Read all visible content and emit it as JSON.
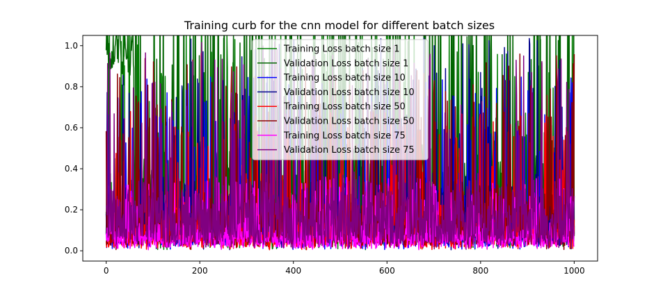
{
  "chart_data": {
    "type": "line",
    "title": "Training curb for the cnn model for different batch sizes",
    "xlabel": "",
    "ylabel": "",
    "xlim": [
      -50,
      1050
    ],
    "ylim": [
      -0.05,
      1.05
    ],
    "x_ticks": [
      0,
      200,
      400,
      600,
      800,
      1000
    ],
    "x_tick_labels": [
      "0",
      "200",
      "400",
      "600",
      "800",
      "1000"
    ],
    "y_ticks": [
      0.0,
      0.2,
      0.4,
      0.6,
      0.8,
      1.0
    ],
    "y_tick_labels": [
      "0.0",
      "0.2",
      "0.4",
      "0.6",
      "0.8",
      "1.0"
    ],
    "grid": false,
    "legend_position": "top-center",
    "x_range": [
      0,
      1000
    ],
    "series": [
      {
        "name": "Training Loss batch size 1",
        "color": "#008000",
        "mean": 0.25,
        "spread": 0.35
      },
      {
        "name": "Validation Loss batch size 1",
        "color": "#006400",
        "mean": 0.35,
        "spread": 0.45
      },
      {
        "name": "Training Loss batch size 10",
        "color": "#0000ff",
        "mean": 0.15,
        "spread": 0.25
      },
      {
        "name": "Validation Loss batch size 10",
        "color": "#00008b",
        "mean": 0.2,
        "spread": 0.3
      },
      {
        "name": "Training Loss batch size 50",
        "color": "#ff0000",
        "mean": 0.12,
        "spread": 0.2
      },
      {
        "name": "Validation Loss batch size 50",
        "color": "#8b0000",
        "mean": 0.18,
        "spread": 0.28
      },
      {
        "name": "Training Loss batch size 75",
        "color": "#ff00ff",
        "mean": 0.08,
        "spread": 0.1
      },
      {
        "name": "Validation Loss batch size 75",
        "color": "#800080",
        "mean": 0.2,
        "spread": 0.3
      }
    ]
  }
}
